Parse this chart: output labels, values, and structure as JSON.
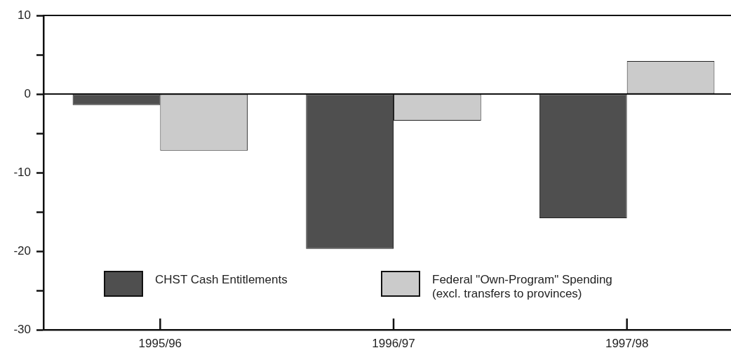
{
  "chart_data": {
    "type": "bar",
    "categories": [
      "1995/96",
      "1996/97",
      "1997/98"
    ],
    "series": [
      {
        "name": "CHST Cash Entitlements",
        "color": "#4f4f4f",
        "values": [
          -1.4,
          -19.7,
          -15.8
        ]
      },
      {
        "name": "Federal \"Own-Program\" Spending (excl. transfers to provinces)",
        "color": "#cbcbcb",
        "values": [
          -7.2,
          -3.4,
          4.2
        ]
      }
    ],
    "ylim": [
      -30,
      10
    ],
    "yticks": [
      -30,
      {
        "value": -25,
        "label": null
      },
      -20,
      {
        "value": -15,
        "label": null
      },
      -10,
      {
        "value": -5,
        "label": null
      },
      0,
      {
        "value": 5,
        "label": null
      },
      10
    ],
    "ref_lines": [
      {
        "axis": "y",
        "value": 0,
        "color": "#111111"
      }
    ],
    "legend": "bottom left",
    "grid": false
  }
}
